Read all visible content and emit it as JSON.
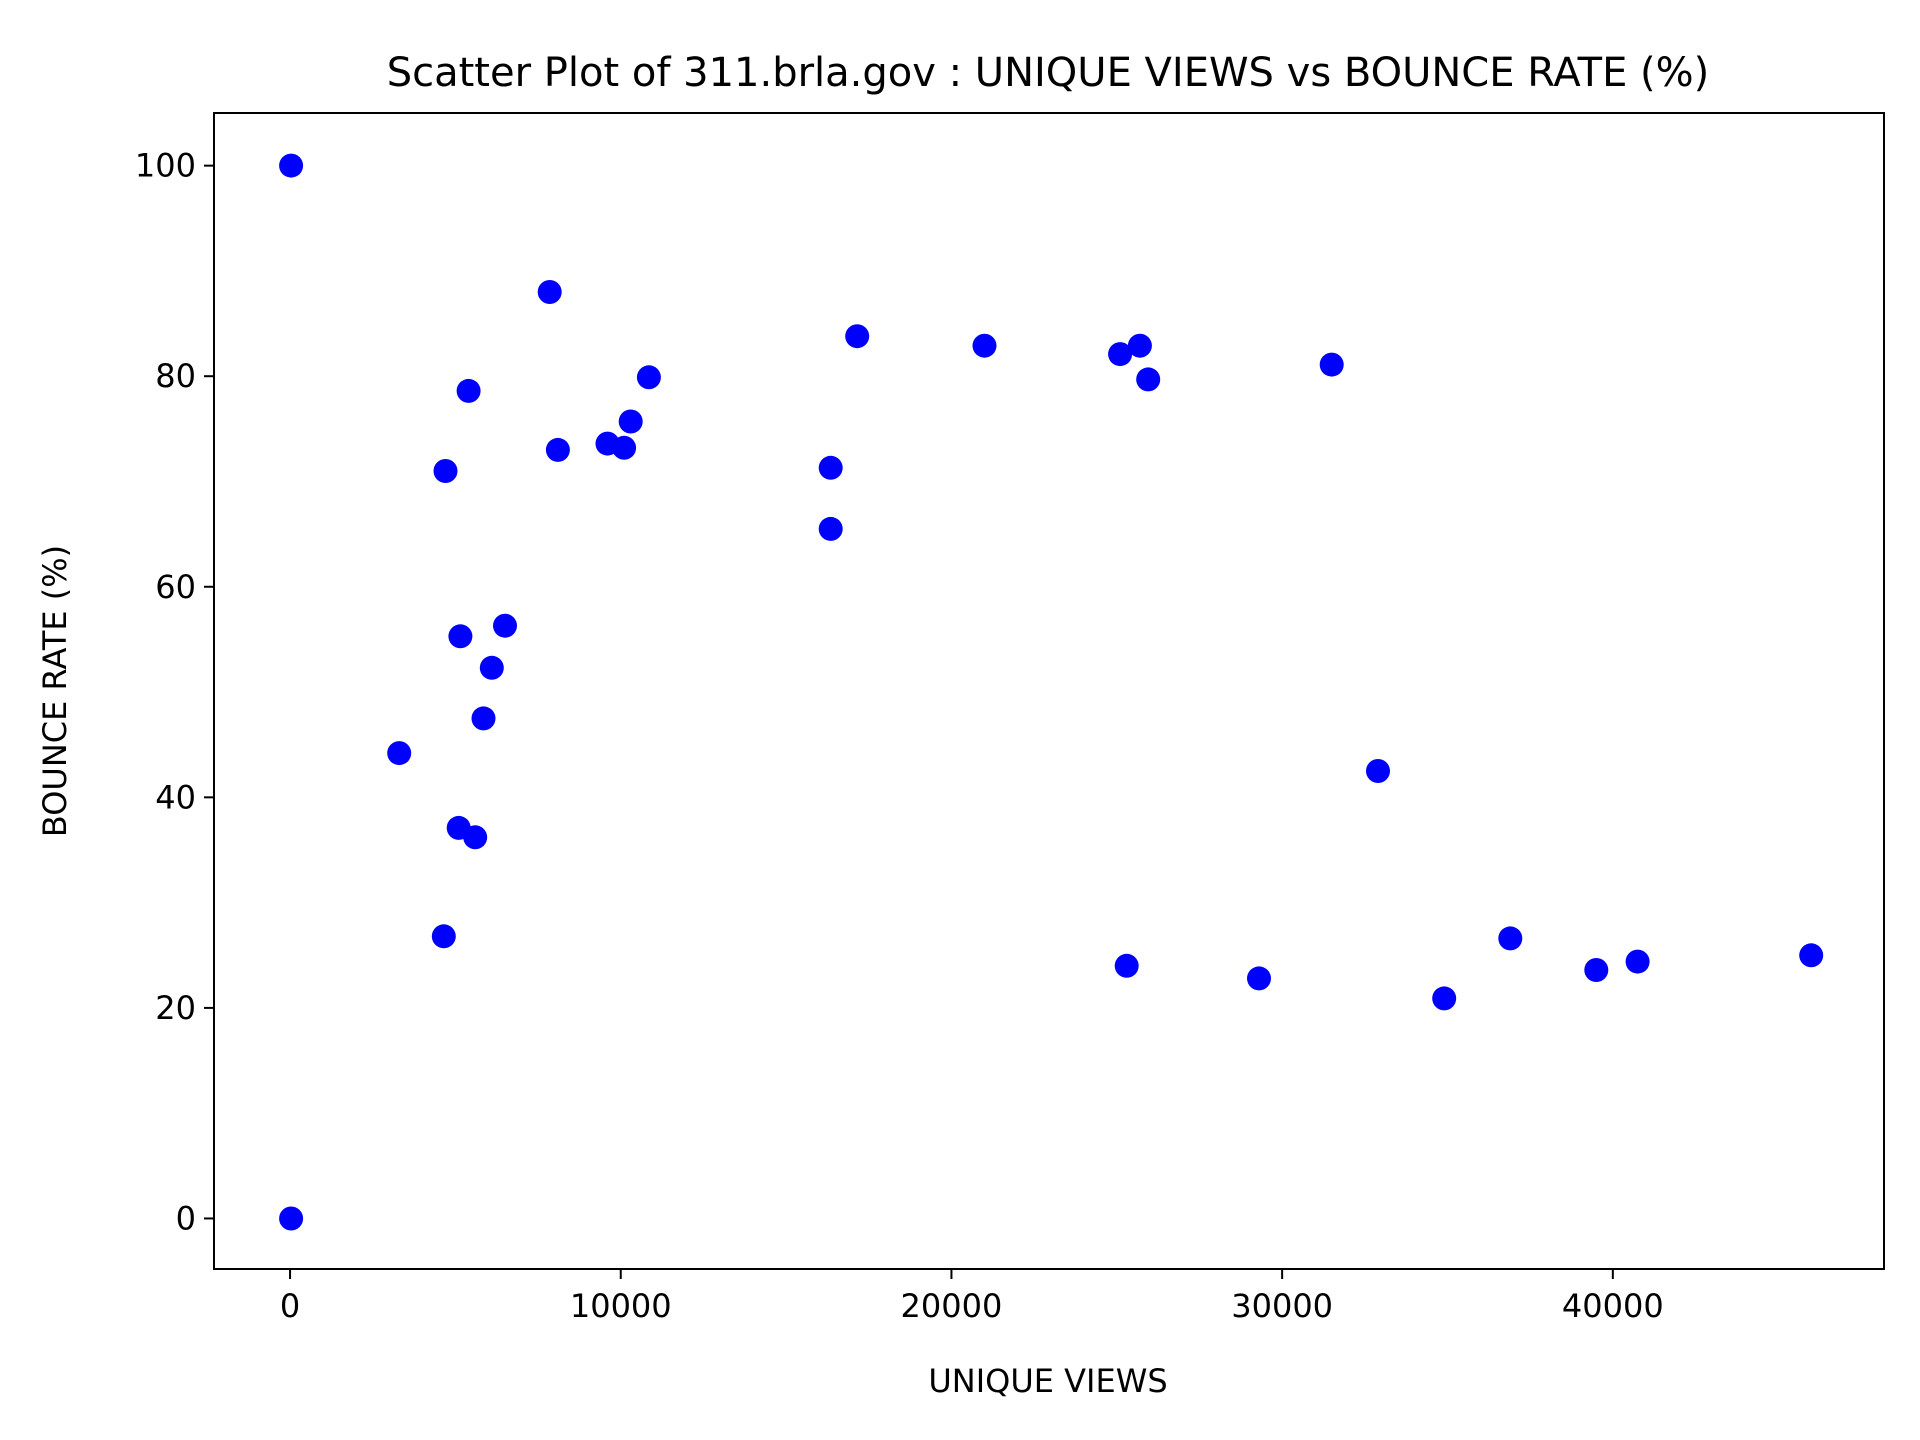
{
  "chart_data": {
    "type": "scatter",
    "title": "Scatter Plot of 311.brla.gov : UNIQUE VIEWS vs BOUNCE RATE (%)",
    "xlabel": "UNIQUE VIEWS",
    "ylabel": "BOUNCE RATE (%)",
    "xlim": [
      -2300,
      48200
    ],
    "ylim": [
      -4.8,
      105
    ],
    "xticks": [
      0,
      10000,
      20000,
      30000,
      40000
    ],
    "yticks": [
      0,
      20,
      40,
      60,
      80,
      100
    ],
    "grid": false,
    "marker_color": "#0000ff",
    "points": [
      {
        "x": 30,
        "y": 100
      },
      {
        "x": 30,
        "y": 0
      },
      {
        "x": 3300,
        "y": 44.2
      },
      {
        "x": 4700,
        "y": 71
      },
      {
        "x": 4650,
        "y": 26.8
      },
      {
        "x": 5150,
        "y": 55.3
      },
      {
        "x": 5100,
        "y": 37.1
      },
      {
        "x": 5400,
        "y": 78.6
      },
      {
        "x": 5600,
        "y": 36.2
      },
      {
        "x": 5850,
        "y": 47.5
      },
      {
        "x": 6100,
        "y": 52.3
      },
      {
        "x": 6500,
        "y": 56.3
      },
      {
        "x": 7850,
        "y": 88
      },
      {
        "x": 8100,
        "y": 73
      },
      {
        "x": 9600,
        "y": 73.6
      },
      {
        "x": 10100,
        "y": 73.2
      },
      {
        "x": 10300,
        "y": 75.7
      },
      {
        "x": 10850,
        "y": 79.9
      },
      {
        "x": 16350,
        "y": 71.3
      },
      {
        "x": 16350,
        "y": 65.5
      },
      {
        "x": 17150,
        "y": 83.8
      },
      {
        "x": 21000,
        "y": 82.9
      },
      {
        "x": 25100,
        "y": 82.1
      },
      {
        "x": 25700,
        "y": 82.9
      },
      {
        "x": 25950,
        "y": 79.7
      },
      {
        "x": 25300,
        "y": 24
      },
      {
        "x": 29300,
        "y": 22.8
      },
      {
        "x": 31500,
        "y": 81.1
      },
      {
        "x": 32900,
        "y": 42.5
      },
      {
        "x": 34900,
        "y": 20.9
      },
      {
        "x": 36900,
        "y": 26.6
      },
      {
        "x": 39500,
        "y": 23.6
      },
      {
        "x": 40750,
        "y": 24.4
      },
      {
        "x": 46000,
        "y": 25
      }
    ]
  }
}
